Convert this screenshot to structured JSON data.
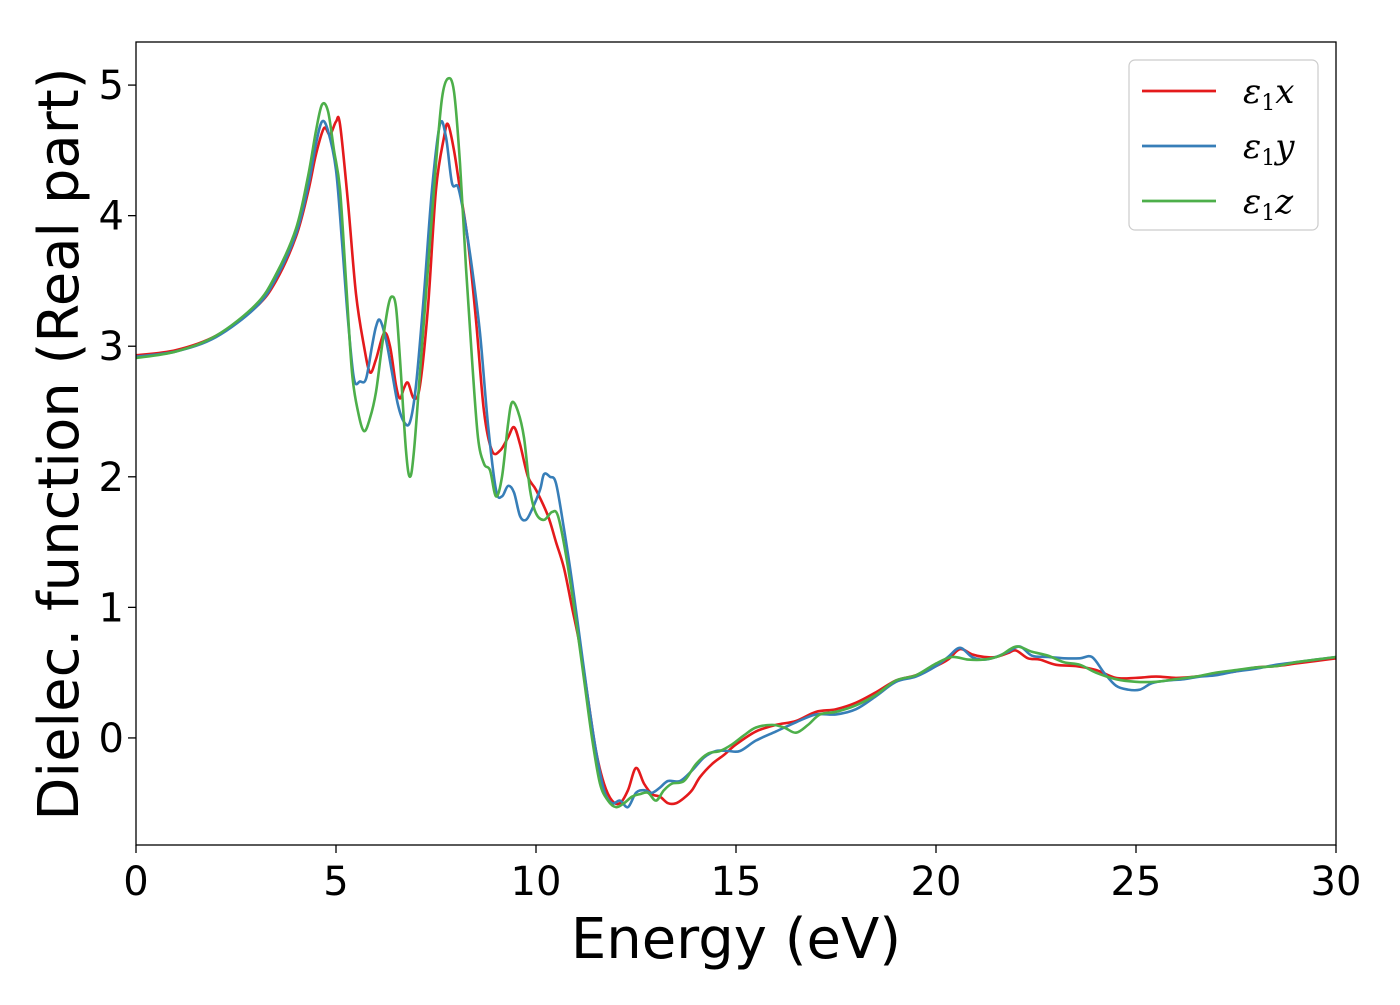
{
  "chart_data": {
    "type": "line",
    "title": "",
    "xlabel": "Energy (eV)",
    "ylabel": "Dielec. function (Real part)",
    "xlim": [
      0,
      30
    ],
    "ylim": [
      -0.82,
      5.33
    ],
    "xticks": [
      0,
      5,
      10,
      15,
      20,
      25,
      30
    ],
    "xtick_labels": [
      "0",
      "5",
      "10",
      "15",
      "20",
      "25",
      "30"
    ],
    "yticks": [
      0,
      1,
      2,
      3,
      4,
      5
    ],
    "ytick_labels": [
      "0",
      "1",
      "2",
      "3",
      "4",
      "5"
    ],
    "grid": false,
    "legend_position": "top-right",
    "series": [
      {
        "name": "ε1x",
        "legend_main": "ε",
        "legend_sub": "1",
        "legend_tail": "x",
        "color": "#e41a1c",
        "points": [
          [
            0,
            2.93
          ],
          [
            1,
            2.97
          ],
          [
            2,
            3.08
          ],
          [
            3,
            3.3
          ],
          [
            3.5,
            3.5
          ],
          [
            4,
            3.84
          ],
          [
            4.3,
            4.18
          ],
          [
            4.5,
            4.47
          ],
          [
            4.7,
            4.67
          ],
          [
            4.85,
            4.62
          ],
          [
            5.0,
            4.72
          ],
          [
            5.1,
            4.7
          ],
          [
            5.3,
            4.1
          ],
          [
            5.5,
            3.4
          ],
          [
            5.7,
            3.0
          ],
          [
            5.85,
            2.8
          ],
          [
            6.0,
            2.9
          ],
          [
            6.2,
            3.1
          ],
          [
            6.35,
            3.0
          ],
          [
            6.5,
            2.7
          ],
          [
            6.6,
            2.6
          ],
          [
            6.7,
            2.68
          ],
          [
            6.8,
            2.72
          ],
          [
            6.95,
            2.6
          ],
          [
            7.1,
            2.7
          ],
          [
            7.3,
            3.3
          ],
          [
            7.5,
            4.2
          ],
          [
            7.7,
            4.6
          ],
          [
            7.8,
            4.7
          ],
          [
            7.95,
            4.5
          ],
          [
            8.1,
            4.2
          ],
          [
            8.3,
            3.8
          ],
          [
            8.5,
            3.2
          ],
          [
            8.7,
            2.5
          ],
          [
            8.9,
            2.2
          ],
          [
            9.1,
            2.2
          ],
          [
            9.3,
            2.3
          ],
          [
            9.45,
            2.38
          ],
          [
            9.6,
            2.25
          ],
          [
            9.8,
            2.0
          ],
          [
            10.0,
            1.9
          ],
          [
            10.3,
            1.7
          ],
          [
            10.5,
            1.5
          ],
          [
            10.7,
            1.3
          ],
          [
            10.9,
            1.0
          ],
          [
            11.1,
            0.7
          ],
          [
            11.3,
            0.3
          ],
          [
            11.5,
            -0.1
          ],
          [
            11.7,
            -0.35
          ],
          [
            11.9,
            -0.48
          ],
          [
            12.1,
            -0.5
          ],
          [
            12.3,
            -0.4
          ],
          [
            12.5,
            -0.23
          ],
          [
            12.7,
            -0.35
          ],
          [
            12.9,
            -0.43
          ],
          [
            13.1,
            -0.45
          ],
          [
            13.3,
            -0.5
          ],
          [
            13.5,
            -0.5
          ],
          [
            13.7,
            -0.46
          ],
          [
            13.9,
            -0.4
          ],
          [
            14.1,
            -0.3
          ],
          [
            14.4,
            -0.2
          ],
          [
            14.7,
            -0.13
          ],
          [
            15.0,
            -0.05
          ],
          [
            15.5,
            0.05
          ],
          [
            16.0,
            0.1
          ],
          [
            16.5,
            0.13
          ],
          [
            17.0,
            0.2
          ],
          [
            17.5,
            0.22
          ],
          [
            18.0,
            0.27
          ],
          [
            18.5,
            0.35
          ],
          [
            19.0,
            0.44
          ],
          [
            19.5,
            0.48
          ],
          [
            20.0,
            0.55
          ],
          [
            20.3,
            0.6
          ],
          [
            20.6,
            0.68
          ],
          [
            20.9,
            0.64
          ],
          [
            21.2,
            0.62
          ],
          [
            21.5,
            0.62
          ],
          [
            21.8,
            0.65
          ],
          [
            22.0,
            0.67
          ],
          [
            22.3,
            0.61
          ],
          [
            22.6,
            0.6
          ],
          [
            23.0,
            0.56
          ],
          [
            23.5,
            0.55
          ],
          [
            24.0,
            0.52
          ],
          [
            24.5,
            0.46
          ],
          [
            25.0,
            0.46
          ],
          [
            25.5,
            0.47
          ],
          [
            26.0,
            0.46
          ],
          [
            26.5,
            0.47
          ],
          [
            27.0,
            0.49
          ],
          [
            27.5,
            0.51
          ],
          [
            28.0,
            0.54
          ],
          [
            28.5,
            0.55
          ],
          [
            29.0,
            0.57
          ],
          [
            29.5,
            0.59
          ],
          [
            30.0,
            0.61
          ]
        ]
      },
      {
        "name": "ε1y",
        "legend_main": "ε",
        "legend_sub": "1",
        "legend_tail": "y",
        "color": "#377eb8",
        "points": [
          [
            0,
            2.92
          ],
          [
            1,
            2.96
          ],
          [
            2,
            3.07
          ],
          [
            3,
            3.3
          ],
          [
            3.5,
            3.52
          ],
          [
            4,
            3.86
          ],
          [
            4.3,
            4.22
          ],
          [
            4.5,
            4.55
          ],
          [
            4.65,
            4.72
          ],
          [
            4.8,
            4.65
          ],
          [
            5.0,
            4.35
          ],
          [
            5.15,
            3.8
          ],
          [
            5.3,
            3.2
          ],
          [
            5.45,
            2.75
          ],
          [
            5.6,
            2.73
          ],
          [
            5.75,
            2.75
          ],
          [
            5.9,
            3.0
          ],
          [
            6.0,
            3.15
          ],
          [
            6.1,
            3.2
          ],
          [
            6.25,
            3.05
          ],
          [
            6.4,
            2.8
          ],
          [
            6.55,
            2.55
          ],
          [
            6.7,
            2.42
          ],
          [
            6.85,
            2.42
          ],
          [
            7.0,
            2.7
          ],
          [
            7.2,
            3.4
          ],
          [
            7.4,
            4.2
          ],
          [
            7.6,
            4.7
          ],
          [
            7.75,
            4.6
          ],
          [
            7.9,
            4.25
          ],
          [
            8.05,
            4.22
          ],
          [
            8.2,
            4.0
          ],
          [
            8.4,
            3.6
          ],
          [
            8.6,
            3.1
          ],
          [
            8.8,
            2.4
          ],
          [
            9.0,
            1.9
          ],
          [
            9.15,
            1.85
          ],
          [
            9.3,
            1.93
          ],
          [
            9.45,
            1.88
          ],
          [
            9.6,
            1.7
          ],
          [
            9.75,
            1.67
          ],
          [
            9.9,
            1.75
          ],
          [
            10.1,
            1.9
          ],
          [
            10.2,
            2.02
          ],
          [
            10.35,
            2.0
          ],
          [
            10.5,
            1.95
          ],
          [
            10.7,
            1.6
          ],
          [
            10.9,
            1.2
          ],
          [
            11.1,
            0.75
          ],
          [
            11.3,
            0.3
          ],
          [
            11.5,
            -0.1
          ],
          [
            11.7,
            -0.4
          ],
          [
            11.9,
            -0.5
          ],
          [
            12.1,
            -0.48
          ],
          [
            12.3,
            -0.53
          ],
          [
            12.5,
            -0.42
          ],
          [
            12.7,
            -0.4
          ],
          [
            12.9,
            -0.42
          ],
          [
            13.1,
            -0.38
          ],
          [
            13.3,
            -0.33
          ],
          [
            13.6,
            -0.33
          ],
          [
            13.9,
            -0.25
          ],
          [
            14.2,
            -0.15
          ],
          [
            14.5,
            -0.1
          ],
          [
            14.8,
            -0.1
          ],
          [
            15.1,
            -0.1
          ],
          [
            15.5,
            -0.02
          ],
          [
            16.0,
            0.05
          ],
          [
            16.5,
            0.12
          ],
          [
            17.0,
            0.18
          ],
          [
            17.5,
            0.18
          ],
          [
            18.0,
            0.22
          ],
          [
            18.5,
            0.32
          ],
          [
            19.0,
            0.43
          ],
          [
            19.5,
            0.47
          ],
          [
            20.0,
            0.55
          ],
          [
            20.3,
            0.62
          ],
          [
            20.6,
            0.69
          ],
          [
            20.9,
            0.62
          ],
          [
            21.2,
            0.6
          ],
          [
            21.5,
            0.62
          ],
          [
            21.8,
            0.66
          ],
          [
            22.1,
            0.7
          ],
          [
            22.4,
            0.63
          ],
          [
            22.8,
            0.62
          ],
          [
            23.2,
            0.61
          ],
          [
            23.6,
            0.61
          ],
          [
            23.9,
            0.62
          ],
          [
            24.2,
            0.5
          ],
          [
            24.5,
            0.4
          ],
          [
            24.8,
            0.37
          ],
          [
            25.1,
            0.37
          ],
          [
            25.4,
            0.42
          ],
          [
            25.8,
            0.44
          ],
          [
            26.2,
            0.45
          ],
          [
            26.6,
            0.47
          ],
          [
            27.0,
            0.48
          ],
          [
            27.5,
            0.51
          ],
          [
            28.0,
            0.53
          ],
          [
            28.5,
            0.56
          ],
          [
            29.0,
            0.58
          ],
          [
            29.5,
            0.6
          ],
          [
            30.0,
            0.62
          ]
        ]
      },
      {
        "name": "ε1z",
        "legend_main": "ε",
        "legend_sub": "1",
        "legend_tail": "z",
        "color": "#4daf4a",
        "points": [
          [
            0,
            2.91
          ],
          [
            1,
            2.96
          ],
          [
            2,
            3.08
          ],
          [
            3,
            3.32
          ],
          [
            3.5,
            3.55
          ],
          [
            4,
            3.9
          ],
          [
            4.3,
            4.3
          ],
          [
            4.5,
            4.65
          ],
          [
            4.65,
            4.85
          ],
          [
            4.8,
            4.8
          ],
          [
            4.95,
            4.5
          ],
          [
            5.1,
            4.2
          ],
          [
            5.25,
            3.5
          ],
          [
            5.4,
            2.8
          ],
          [
            5.55,
            2.5
          ],
          [
            5.7,
            2.35
          ],
          [
            5.85,
            2.45
          ],
          [
            6.0,
            2.65
          ],
          [
            6.15,
            3.0
          ],
          [
            6.3,
            3.3
          ],
          [
            6.4,
            3.38
          ],
          [
            6.5,
            3.3
          ],
          [
            6.6,
            2.9
          ],
          [
            6.75,
            2.2
          ],
          [
            6.85,
            2.0
          ],
          [
            6.95,
            2.2
          ],
          [
            7.1,
            2.8
          ],
          [
            7.3,
            3.6
          ],
          [
            7.5,
            4.4
          ],
          [
            7.65,
            4.9
          ],
          [
            7.8,
            5.05
          ],
          [
            7.95,
            4.95
          ],
          [
            8.1,
            4.4
          ],
          [
            8.25,
            3.6
          ],
          [
            8.4,
            2.9
          ],
          [
            8.55,
            2.3
          ],
          [
            8.7,
            2.1
          ],
          [
            8.85,
            2.05
          ],
          [
            9.0,
            1.85
          ],
          [
            9.15,
            2.0
          ],
          [
            9.3,
            2.4
          ],
          [
            9.4,
            2.57
          ],
          [
            9.55,
            2.5
          ],
          [
            9.7,
            2.3
          ],
          [
            9.85,
            1.9
          ],
          [
            10.0,
            1.72
          ],
          [
            10.2,
            1.67
          ],
          [
            10.4,
            1.73
          ],
          [
            10.55,
            1.7
          ],
          [
            10.75,
            1.4
          ],
          [
            11.0,
            0.9
          ],
          [
            11.2,
            0.45
          ],
          [
            11.4,
            0.0
          ],
          [
            11.6,
            -0.35
          ],
          [
            11.8,
            -0.48
          ],
          [
            12.0,
            -0.53
          ],
          [
            12.2,
            -0.5
          ],
          [
            12.4,
            -0.45
          ],
          [
            12.6,
            -0.43
          ],
          [
            12.8,
            -0.42
          ],
          [
            13.0,
            -0.48
          ],
          [
            13.2,
            -0.4
          ],
          [
            13.4,
            -0.35
          ],
          [
            13.7,
            -0.33
          ],
          [
            14.0,
            -0.2
          ],
          [
            14.3,
            -0.12
          ],
          [
            14.6,
            -0.1
          ],
          [
            14.9,
            -0.05
          ],
          [
            15.2,
            0.02
          ],
          [
            15.5,
            0.08
          ],
          [
            15.9,
            0.1
          ],
          [
            16.2,
            0.08
          ],
          [
            16.5,
            0.04
          ],
          [
            16.8,
            0.1
          ],
          [
            17.1,
            0.18
          ],
          [
            17.5,
            0.2
          ],
          [
            18.0,
            0.25
          ],
          [
            18.5,
            0.33
          ],
          [
            19.0,
            0.44
          ],
          [
            19.5,
            0.48
          ],
          [
            20.0,
            0.57
          ],
          [
            20.4,
            0.62
          ],
          [
            20.8,
            0.6
          ],
          [
            21.2,
            0.6
          ],
          [
            21.6,
            0.63
          ],
          [
            22.0,
            0.7
          ],
          [
            22.4,
            0.66
          ],
          [
            22.8,
            0.63
          ],
          [
            23.2,
            0.58
          ],
          [
            23.6,
            0.56
          ],
          [
            24.0,
            0.5
          ],
          [
            24.5,
            0.45
          ],
          [
            25.0,
            0.43
          ],
          [
            25.5,
            0.43
          ],
          [
            26.0,
            0.45
          ],
          [
            26.5,
            0.47
          ],
          [
            27.0,
            0.5
          ],
          [
            27.5,
            0.52
          ],
          [
            28.0,
            0.54
          ],
          [
            28.5,
            0.55
          ],
          [
            29.0,
            0.58
          ],
          [
            29.5,
            0.6
          ],
          [
            30.0,
            0.62
          ]
        ]
      }
    ]
  }
}
